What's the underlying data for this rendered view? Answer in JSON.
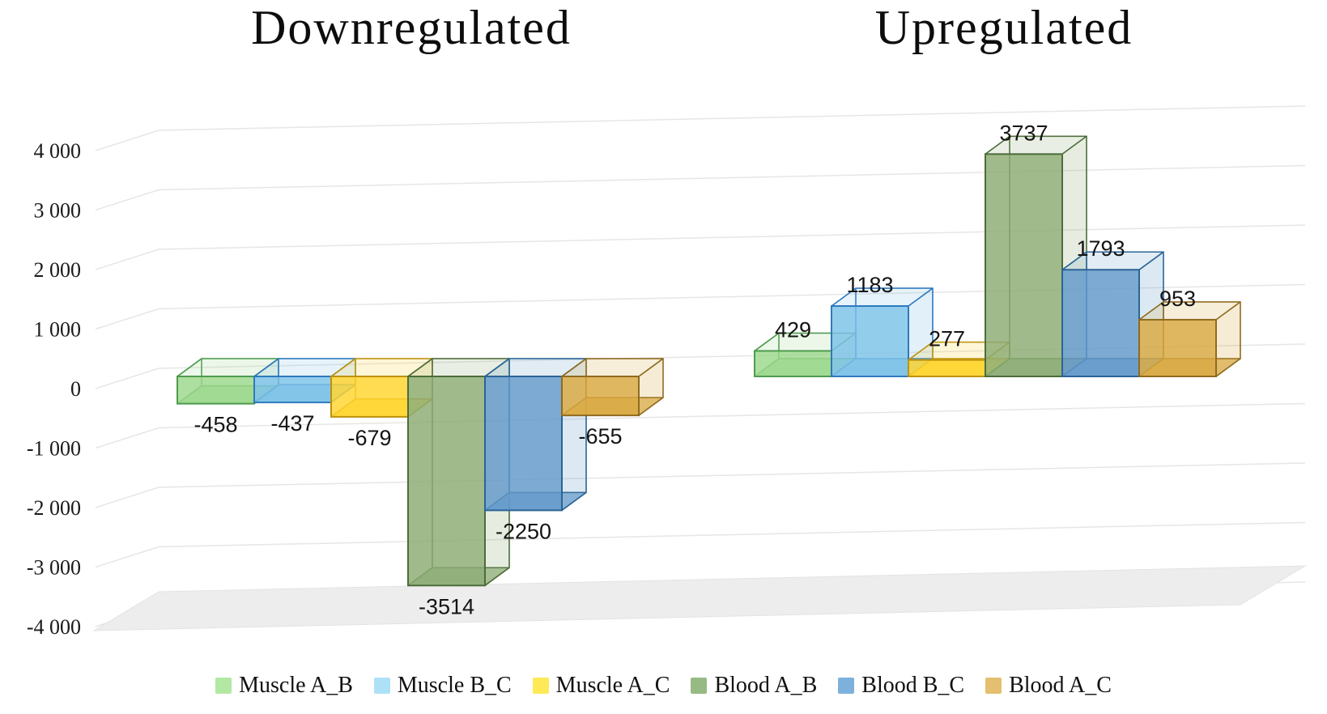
{
  "chart_data": {
    "type": "bar",
    "style": "3d-box",
    "categories": [
      "Downregulated",
      "Upregulated"
    ],
    "series": [
      {
        "name": "Muscle A_B",
        "color": "#9CD88C",
        "edge": "#4F9B4F",
        "legend_color": "#B2E8A2",
        "values": [
          -458,
          429
        ]
      },
      {
        "name": "Muscle B_C",
        "color": "#7CC2E8",
        "edge": "#2E79BD",
        "legend_color": "#ADE1F7",
        "values": [
          -437,
          1183
        ]
      },
      {
        "name": "Muscle A_C",
        "color": "#FFD42E",
        "edge": "#BD920E",
        "legend_color": "#FFE957",
        "values": [
          -679,
          277
        ]
      },
      {
        "name": "Blood A_B",
        "color": "#8CAC74",
        "edge": "#4D6C3B",
        "legend_color": "#97BA85",
        "values": [
          -3514,
          3737
        ]
      },
      {
        "name": "Blood B_C",
        "color": "#6399C9",
        "edge": "#2B6496",
        "legend_color": "#7DB1DB",
        "values": [
          -2250,
          1793
        ]
      },
      {
        "name": "Blood A_C",
        "color": "#D9A841",
        "edge": "#8F6B1F",
        "legend_color": "#E3BF6F",
        "values": [
          -655,
          953
        ]
      }
    ],
    "y_axis": {
      "min": -4000,
      "max": 4000,
      "step": 1000,
      "tick_labels": [
        "4 000",
        "3 000",
        "2 000",
        "1 000",
        "0",
        "-1 000",
        "-2 000",
        "-3 000",
        "-4 000"
      ]
    },
    "grid": true,
    "legend_position": "bottom",
    "colors": {
      "gridline": "#E6E6E6",
      "floor_fill": "#EDEDED",
      "floor_edge": "#E3E3E3",
      "background": "#FFFFFF"
    }
  }
}
